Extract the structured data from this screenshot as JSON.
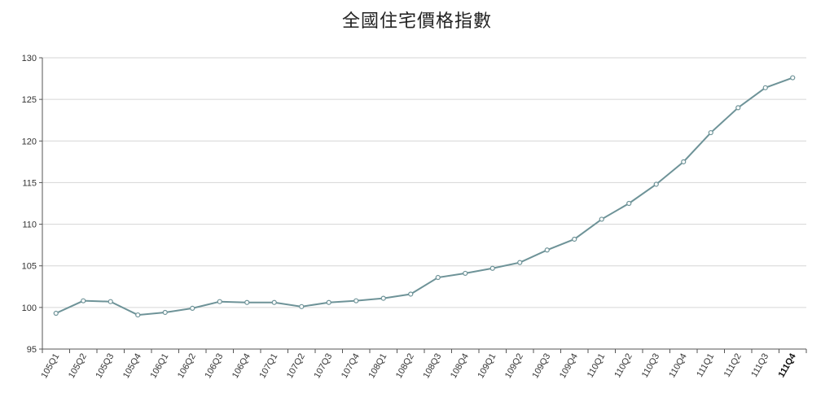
{
  "chart_data": {
    "type": "line",
    "title": "全國住宅價格指數",
    "xlabel": "",
    "ylabel": "",
    "ylim": [
      95,
      130
    ],
    "yticks": [
      95,
      100,
      105,
      110,
      115,
      120,
      125,
      130
    ],
    "grid": true,
    "categories": [
      "105Q1",
      "105Q2",
      "105Q3",
      "105Q4",
      "106Q1",
      "106Q2",
      "106Q3",
      "106Q4",
      "107Q1",
      "107Q2",
      "107Q3",
      "107Q4",
      "108Q1",
      "108Q2",
      "108Q3",
      "108Q4",
      "109Q1",
      "109Q2",
      "109Q3",
      "109Q4",
      "110Q1",
      "110Q2",
      "110Q3",
      "110Q4",
      "111Q1",
      "111Q2",
      "111Q3",
      "111Q4"
    ],
    "series": [
      {
        "values": [
          99.3,
          100.8,
          100.7,
          99.1,
          99.4,
          99.9,
          100.7,
          100.6,
          100.6,
          100.1,
          100.6,
          100.8,
          101.1,
          101.6,
          103.6,
          104.1,
          104.7,
          105.4,
          106.9,
          108.2,
          110.6,
          112.5,
          114.8,
          117.5,
          121.0,
          124.0,
          126.4,
          127.6
        ],
        "color": "#6e9398"
      }
    ]
  }
}
